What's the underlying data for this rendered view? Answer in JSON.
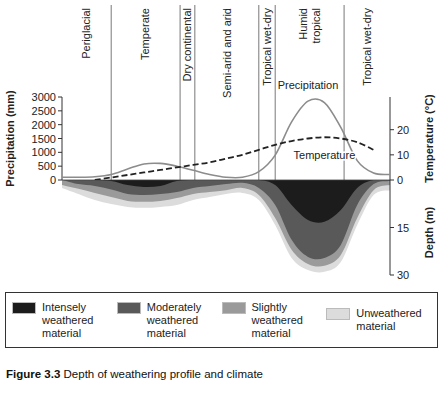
{
  "chart_data": [
    {
      "type": "line",
      "figure_label": "Figure 3.3",
      "title": "Depth of weathering profile and climate",
      "zones": [
        "Periglacial",
        "Temperate",
        "Dry continental",
        "Semi-arid and arid",
        "Tropical wet-dry",
        "Humid\ntropical",
        "Tropical wet-dry"
      ],
      "zone_bounds": [
        15,
        36,
        40.5,
        60,
        65,
        86
      ],
      "x": [
        0,
        5,
        10,
        15,
        20,
        25,
        30,
        35,
        40,
        45,
        50,
        55,
        60,
        65,
        70,
        75,
        80,
        85,
        90,
        95,
        100
      ],
      "xlim": [
        0,
        100
      ],
      "tick_labels": "y",
      "ylabel": "Precipitation (mm)",
      "ylim": [
        0,
        3000
      ],
      "yticks": [
        0,
        500,
        1000,
        1500,
        2000,
        2500,
        3000
      ],
      "y2label": "Temperature (°C)",
      "y2lim": [
        0,
        33
      ],
      "y2ticks": [
        0,
        10,
        20
      ],
      "series": [
        {
          "name": "Precipitation",
          "color": "#8c8c8c",
          "line_style": "solid",
          "values": [
            100,
            100,
            120,
            200,
            400,
            580,
            600,
            500,
            350,
            200,
            100,
            100,
            300,
            900,
            2100,
            2850,
            2800,
            1900,
            700,
            250,
            200
          ]
        },
        {
          "name": "Temperature",
          "color": "#222222",
          "line_style": "dashed",
          "axis": "y2",
          "values": [
            null,
            null,
            0,
            1,
            2,
            3,
            4,
            5,
            6,
            7,
            8.5,
            10,
            12,
            14,
            15.5,
            16.5,
            17,
            16.5,
            15,
            12,
            null
          ]
        }
      ]
    },
    {
      "type": "area",
      "stacked": true,
      "x": [
        0,
        5,
        10,
        15,
        20,
        25,
        30,
        35,
        40,
        45,
        50,
        55,
        60,
        65,
        70,
        75,
        80,
        85,
        90,
        95,
        100
      ],
      "xlim": [
        0,
        100
      ],
      "tick_labels": "y",
      "ylabel": "Depth (m)",
      "ylim": [
        0,
        30
      ],
      "yticks": [
        15,
        30
      ],
      "legend": "bottom",
      "series": [
        {
          "name": "Intensely weathered material",
          "color": "#1c1c1c",
          "values": [
            0,
            0,
            0,
            0.3,
            1.6,
            2.2,
            1.9,
            0.3,
            0,
            0,
            0,
            0,
            0,
            1.6,
            7.9,
            12.6,
            13.2,
            9.5,
            2.5,
            0,
            0
          ]
        },
        {
          "name": "Moderately weathered material",
          "color": "#595959",
          "values": [
            0,
            1.3,
            1.9,
            2.7,
            2.8,
            2.5,
            2.5,
            3.5,
            2.5,
            1.9,
            1.3,
            0.9,
            2.5,
            6.3,
            11,
            11.7,
            11.4,
            11,
            5.4,
            1.3,
            0.3
          ]
        },
        {
          "name": "Slightly weathered material",
          "color": "#9a9a9a",
          "values": [
            1.6,
            1.5,
            2.2,
            2.4,
            2.2,
            2.2,
            2.2,
            1.9,
            1.9,
            1.9,
            1.9,
            1.6,
            2.2,
            4.1,
            3.1,
            2.2,
            2.5,
            3.2,
            4.1,
            1.9,
            1.3
          ]
        },
        {
          "name": "Unweathered material",
          "color": "#dcdcdc",
          "values": [
            0.9,
            1.6,
            2.2,
            2.2,
            1.9,
            1.9,
            1.9,
            2.2,
            1.9,
            1.6,
            1.2,
            1.6,
            1.6,
            2.2,
            2.6,
            1.9,
            1.9,
            2.2,
            2.2,
            1.5,
            1.6
          ]
        }
      ]
    }
  ]
}
